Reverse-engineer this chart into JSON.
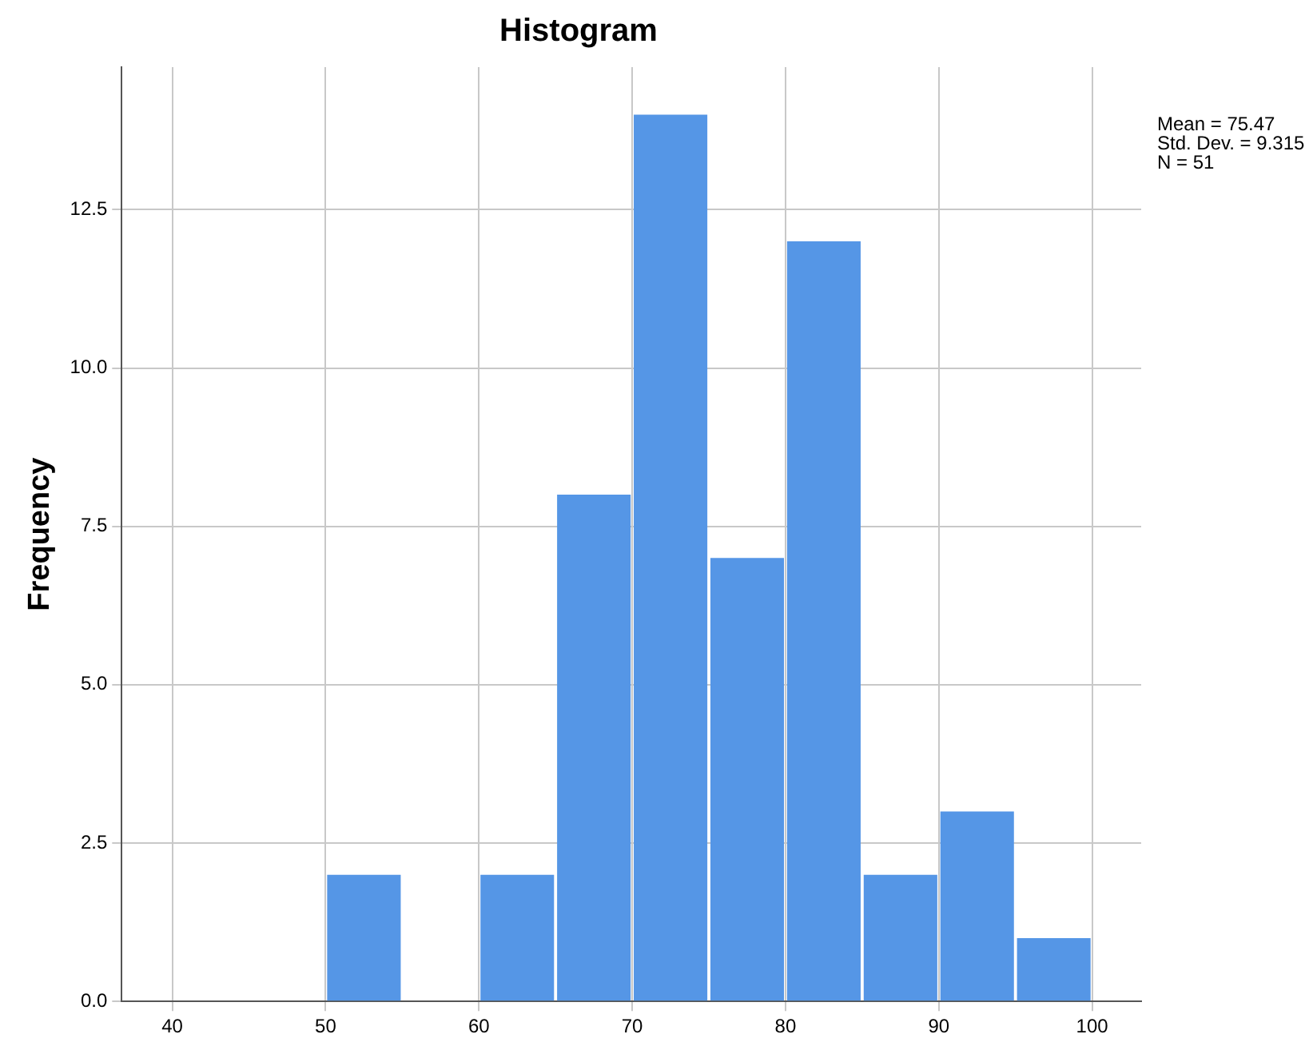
{
  "chart_data": {
    "type": "histogram",
    "title": "Histogram",
    "ylabel": "Frequency",
    "bins": [
      50,
      55,
      60,
      65,
      70,
      75,
      80,
      85,
      90,
      95,
      100
    ],
    "values": [
      2,
      0,
      2,
      8,
      14,
      7,
      12,
      2,
      3,
      1
    ],
    "color": "#5596e6",
    "xlim": [
      36.7,
      103.2
    ],
    "xticks": [
      40,
      50,
      60,
      70,
      80,
      90,
      100
    ],
    "ylim": [
      0,
      14.75
    ],
    "yticks": [
      {
        "value": 0,
        "label": "0.0"
      },
      {
        "value": 2.5,
        "label": "2.5"
      },
      {
        "value": 5,
        "label": "5.0"
      },
      {
        "value": 7.5,
        "label": "7.5"
      },
      {
        "value": 10,
        "label": "10.0"
      },
      {
        "value": 12.5,
        "label": "12.5"
      }
    ],
    "grid": true,
    "annotations": [
      "Mean = 75.47",
      "Std. Dev. = 9.315",
      "N = 51"
    ]
  }
}
